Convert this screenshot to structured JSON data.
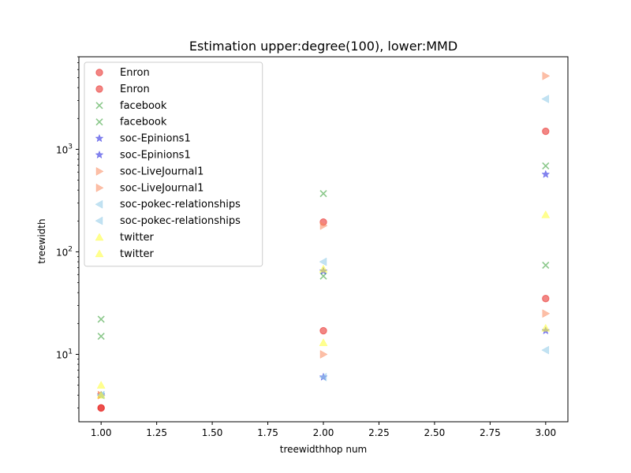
{
  "chart_data": {
    "type": "scatter",
    "title": "Estimation upper:degree(100), lower:MMD",
    "xlabel": "treewidthhop num",
    "ylabel": "treewidth",
    "xlim": [
      0.9,
      3.1
    ],
    "ylim": [
      2.2,
      8000
    ],
    "yscale": "log",
    "x_ticks": [
      1.0,
      1.25,
      1.5,
      1.75,
      2.0,
      2.25,
      2.5,
      2.75,
      3.0
    ],
    "x_tick_labels": [
      "1.00",
      "1.25",
      "1.50",
      "1.75",
      "2.00",
      "2.25",
      "2.50",
      "2.75",
      "3.00"
    ],
    "y_major_ticks": [
      10,
      100,
      1000
    ],
    "y_tick_labels": [
      "10^1",
      "10^2",
      "10^3"
    ],
    "legend_position": "upper-left",
    "series": [
      {
        "name": "Enron",
        "marker": "circle",
        "color": "#e8221f",
        "x": [
          1,
          2,
          3
        ],
        "y": [
          3,
          195,
          1500
        ]
      },
      {
        "name": "Enron",
        "marker": "circle",
        "color": "#e8221f",
        "x": [
          1,
          2,
          3
        ],
        "y": [
          3,
          17,
          35
        ]
      },
      {
        "name": "facebook",
        "marker": "x",
        "color": "#2b9a2b",
        "x": [
          1,
          2,
          3
        ],
        "y": [
          22,
          370,
          690
        ]
      },
      {
        "name": "facebook",
        "marker": "x",
        "color": "#2b9a2b",
        "x": [
          1,
          2,
          3
        ],
        "y": [
          15,
          58,
          74
        ]
      },
      {
        "name": "soc-Epinions1",
        "marker": "star",
        "color": "#1d1de0",
        "x": [
          1,
          2,
          3
        ],
        "y": [
          4,
          65,
          570
        ]
      },
      {
        "name": "soc-Epinions1",
        "marker": "star",
        "color": "#1d1de0",
        "x": [
          1,
          2,
          3
        ],
        "y": [
          4,
          6,
          17
        ]
      },
      {
        "name": "soc-LiveJournal1",
        "marker": "triangle-right",
        "color": "#f98a5e",
        "x": [
          1,
          2,
          3
        ],
        "y": [
          4,
          180,
          5200
        ]
      },
      {
        "name": "soc-LiveJournal1",
        "marker": "triangle-right",
        "color": "#f98a5e",
        "x": [
          1,
          2,
          3
        ],
        "y": [
          4,
          10,
          25
        ]
      },
      {
        "name": "soc-pokec-relationships",
        "marker": "triangle-left",
        "color": "#8fcbe8",
        "x": [
          1,
          2,
          3
        ],
        "y": [
          4,
          80,
          3100
        ]
      },
      {
        "name": "soc-pokec-relationships",
        "marker": "triangle-left",
        "color": "#8fcbe8",
        "x": [
          1,
          2,
          3
        ],
        "y": [
          4,
          6,
          11
        ]
      },
      {
        "name": "twitter",
        "marker": "triangle-up",
        "color": "#ffff33",
        "x": [
          1,
          2,
          3
        ],
        "y": [
          5,
          68,
          230
        ]
      },
      {
        "name": "twitter",
        "marker": "triangle-up",
        "color": "#ffff33",
        "x": [
          1,
          2,
          3
        ],
        "y": [
          4,
          13,
          18
        ]
      }
    ]
  }
}
